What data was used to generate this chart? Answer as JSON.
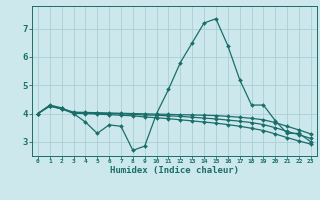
{
  "xlabel": "Humidex (Indice chaleur)",
  "background_color": "#cce8ec",
  "grid_color": "#aacfd5",
  "line_color": "#1a6e6a",
  "xlim": [
    -0.5,
    23.5
  ],
  "ylim": [
    2.5,
    7.8
  ],
  "xticks": [
    0,
    1,
    2,
    3,
    4,
    5,
    6,
    7,
    8,
    9,
    10,
    11,
    12,
    13,
    14,
    15,
    16,
    17,
    18,
    19,
    20,
    21,
    22,
    23
  ],
  "yticks": [
    3,
    4,
    5,
    6,
    7
  ],
  "lines": [
    {
      "x": [
        0,
        1,
        2,
        3,
        4,
        5,
        6,
        7,
        8,
        9,
        10,
        11,
        12,
        13,
        14,
        15,
        16,
        17,
        18,
        19,
        20,
        21,
        22,
        23
      ],
      "y": [
        4.0,
        4.3,
        4.2,
        4.0,
        3.7,
        3.3,
        3.6,
        3.55,
        2.7,
        2.85,
        4.0,
        4.85,
        5.8,
        6.5,
        7.2,
        7.35,
        6.4,
        5.2,
        4.3,
        4.3,
        3.75,
        3.3,
        3.3,
        3.0
      ]
    },
    {
      "x": [
        0,
        1,
        2,
        3,
        4,
        5,
        6,
        7,
        8,
        9,
        10,
        11,
        12,
        13,
        14,
        15,
        16,
        17,
        18,
        19,
        20,
        21,
        22,
        23
      ],
      "y": [
        4.0,
        4.28,
        4.18,
        4.05,
        4.04,
        4.03,
        4.02,
        4.01,
        4.0,
        3.99,
        3.98,
        3.97,
        3.96,
        3.95,
        3.94,
        3.93,
        3.9,
        3.87,
        3.83,
        3.78,
        3.68,
        3.55,
        3.42,
        3.28
      ]
    },
    {
      "x": [
        0,
        1,
        2,
        3,
        4,
        5,
        6,
        7,
        8,
        9,
        10,
        11,
        12,
        13,
        14,
        15,
        16,
        17,
        18,
        19,
        20,
        21,
        22,
        23
      ],
      "y": [
        4.0,
        4.27,
        4.17,
        4.03,
        4.02,
        4.01,
        4.0,
        3.99,
        3.97,
        3.95,
        3.94,
        3.92,
        3.9,
        3.87,
        3.84,
        3.81,
        3.77,
        3.73,
        3.68,
        3.61,
        3.5,
        3.37,
        3.25,
        3.12
      ]
    },
    {
      "x": [
        0,
        1,
        2,
        3,
        4,
        5,
        6,
        7,
        8,
        9,
        10,
        11,
        12,
        13,
        14,
        15,
        16,
        17,
        18,
        19,
        20,
        21,
        22,
        23
      ],
      "y": [
        4.0,
        4.26,
        4.16,
        4.01,
        4.0,
        3.98,
        3.96,
        3.94,
        3.92,
        3.88,
        3.85,
        3.82,
        3.78,
        3.74,
        3.7,
        3.66,
        3.61,
        3.55,
        3.48,
        3.4,
        3.28,
        3.15,
        3.03,
        2.92
      ]
    }
  ]
}
